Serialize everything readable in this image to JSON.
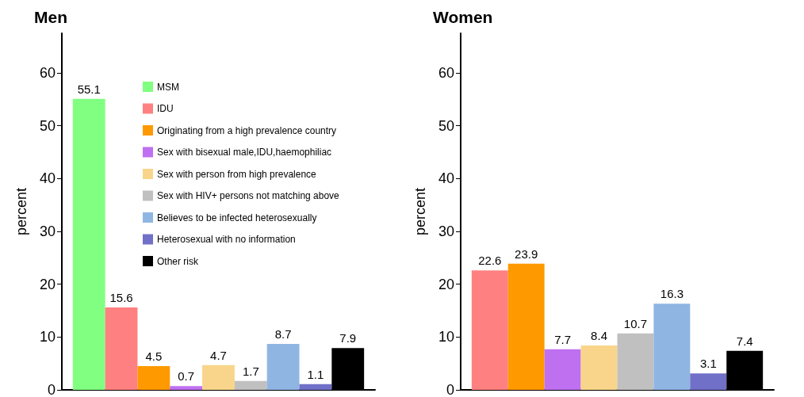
{
  "chart_data": [
    {
      "type": "bar",
      "title": "Men",
      "ylabel": "percent",
      "categories": [
        null
      ],
      "ylim": [
        0,
        67.5
      ],
      "yticks": [
        0,
        10,
        20,
        30,
        40,
        50,
        60
      ],
      "grid": false,
      "legend": "top right",
      "data_labels": true,
      "series": [
        {
          "name": "MSM",
          "color": "#80ff80",
          "values": [
            55.1
          ]
        },
        {
          "name": "IDU",
          "color": "#ff8080",
          "values": [
            15.6
          ]
        },
        {
          "name": "Originating from a high prevalence country",
          "color": "#ff9900",
          "values": [
            4.5
          ]
        },
        {
          "name": "Sex with bisexual male,IDU,haemophiliac",
          "color": "#bf70f0",
          "values": [
            0.7
          ]
        },
        {
          "name": "Sex with person from high prevalence",
          "color": "#f8d58a",
          "values": [
            4.7
          ]
        },
        {
          "name": "Sex with HIV+ persons not matching above",
          "color": "#c0c0c0",
          "values": [
            1.7
          ]
        },
        {
          "name": "Believes to be infected heterosexually",
          "color": "#8fb5e3",
          "values": [
            8.7
          ]
        },
        {
          "name": "Heterosexual with no information",
          "color": "#7070c8",
          "values": [
            1.1
          ]
        },
        {
          "name": "Other risk",
          "color": "#000000",
          "values": [
            7.9
          ]
        }
      ]
    },
    {
      "type": "bar",
      "title": "Women",
      "ylabel": "percent",
      "categories": [
        null
      ],
      "ylim": [
        0,
        67.5
      ],
      "yticks": [
        0,
        10,
        20,
        30,
        40,
        50,
        60
      ],
      "grid": false,
      "legend": false,
      "data_labels": true,
      "series": [
        {
          "color": "#ff8080",
          "values": [
            22.6
          ]
        },
        {
          "color": "#ff9900",
          "values": [
            23.9
          ]
        },
        {
          "color": "#bf70f0",
          "values": [
            7.7
          ]
        },
        {
          "color": "#f8d58a",
          "values": [
            8.4
          ]
        },
        {
          "color": "#c0c0c0",
          "values": [
            10.7
          ]
        },
        {
          "color": "#8fb5e3",
          "values": [
            16.3
          ]
        },
        {
          "color": "#7070c8",
          "values": [
            3.1
          ]
        },
        {
          "color": "#000000",
          "values": [
            7.4
          ]
        }
      ]
    }
  ]
}
